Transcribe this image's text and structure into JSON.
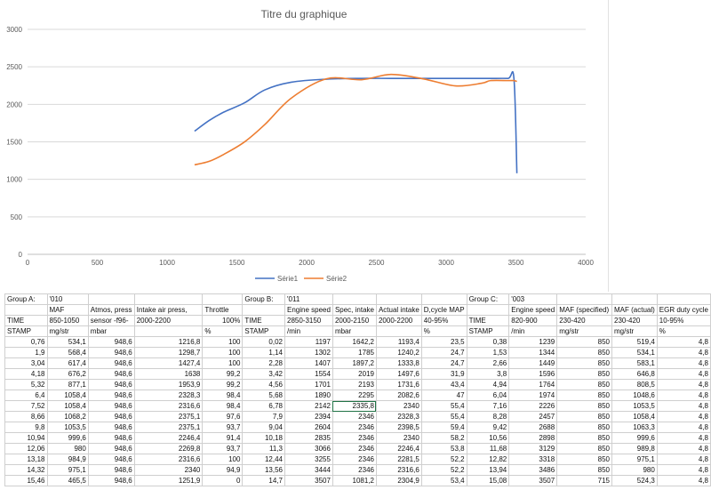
{
  "chart_data": {
    "type": "line",
    "title": "Titre du graphique",
    "xlim": [
      0,
      4000
    ],
    "ylim": [
      0,
      3000
    ],
    "x_ticks": [
      "0",
      "500",
      "1000",
      "1500",
      "2000",
      "2500",
      "3000",
      "3500",
      "4000"
    ],
    "y_ticks": [
      "0",
      "500",
      "1000",
      "1500",
      "2000",
      "2500",
      "3000"
    ],
    "grid": true,
    "legend_position": "bottom",
    "series": [
      {
        "name": "Série1",
        "color": "#4472c4",
        "x": [
          1197,
          1302,
          1407,
          1554,
          1701,
          1890,
          2142,
          2394,
          2604,
          2835,
          3066,
          3255,
          3318,
          3444,
          3486,
          3507
        ],
        "y": [
          1642.2,
          1785,
          1897.2,
          2019,
          2193,
          2295,
          2335.8,
          2346,
          2346,
          2346,
          2346,
          2346,
          2346,
          2346,
          2340,
          1081.2
        ]
      },
      {
        "name": "Série2",
        "color": "#ed7d31",
        "x": [
          1197,
          1302,
          1407,
          1554,
          1701,
          1890,
          2142,
          2394,
          2604,
          2835,
          3066,
          3255,
          3318,
          3444,
          3486,
          3507
        ],
        "y": [
          1193.4,
          1240.2,
          1333.8,
          1497.6,
          1731.6,
          2082.6,
          2340,
          2328.3,
          2398.5,
          2340,
          2246.4,
          2281.5,
          2316.6,
          2316.6,
          2316.6,
          2304.9
        ]
      }
    ]
  },
  "sheet": {
    "rows": [
      [
        "Group A:",
        "'010",
        "",
        "",
        "",
        "Group B:",
        "'011",
        "",
        "",
        "",
        "Group C:",
        "'003",
        "",
        "",
        ""
      ],
      [
        "",
        "MAF",
        "Atmos, press",
        "Intake air press,",
        "Throttle",
        "",
        "Engine speed",
        "Spec, intake",
        "Actual intake",
        "D,cycle MAP",
        "",
        "Engine speed",
        "MAF (specified)",
        "MAF (actual)",
        "EGR duty cycle"
      ],
      [
        "TIME",
        "850-1050",
        "sensor -f96-",
        "2000-2200",
        "100%",
        "TIME",
        "2850-3150",
        "2000-2150",
        "2000-2200",
        "40-95%",
        "TIME",
        "820-900",
        "230-420",
        "230-420",
        "10-95%"
      ],
      [
        "STAMP",
        "mg/str",
        "mbar",
        "",
        "%",
        "STAMP",
        "/min",
        "mbar",
        "",
        "%",
        "STAMP",
        "/min",
        "mg/str",
        "mg/str",
        "%"
      ],
      [
        "0,76",
        "534,1",
        "948,6",
        "1216,8",
        "100",
        "0,02",
        "1197",
        "1642,2",
        "1193,4",
        "23,5",
        "0,38",
        "1239",
        "850",
        "519,4",
        "4,8"
      ],
      [
        "1,9",
        "568,4",
        "948,6",
        "1298,7",
        "100",
        "1,14",
        "1302",
        "1785",
        "1240,2",
        "24,7",
        "1,53",
        "1344",
        "850",
        "534,1",
        "4,8"
      ],
      [
        "3,04",
        "617,4",
        "948,6",
        "1427,4",
        "100",
        "2,28",
        "1407",
        "1897,2",
        "1333,8",
        "24,7",
        "2,66",
        "1449",
        "850",
        "583,1",
        "4,8"
      ],
      [
        "4,18",
        "676,2",
        "948,6",
        "1638",
        "99,2",
        "3,42",
        "1554",
        "2019",
        "1497,6",
        "31,9",
        "3,8",
        "1596",
        "850",
        "646,8",
        "4,8"
      ],
      [
        "5,32",
        "877,1",
        "948,6",
        "1953,9",
        "99,2",
        "4,56",
        "1701",
        "2193",
        "1731,6",
        "43,4",
        "4,94",
        "1764",
        "850",
        "808,5",
        "4,8"
      ],
      [
        "6,4",
        "1058,4",
        "948,6",
        "2328,3",
        "98,4",
        "5,68",
        "1890",
        "2295",
        "2082,6",
        "47",
        "6,04",
        "1974",
        "850",
        "1048,6",
        "4,8"
      ],
      [
        "7,52",
        "1058,4",
        "948,6",
        "2316,6",
        "98,4",
        "6,78",
        "2142",
        "2335,8",
        "2340",
        "55,4",
        "7,16",
        "2226",
        "850",
        "1053,5",
        "4,8"
      ],
      [
        "8,66",
        "1068,2",
        "948,6",
        "2375,1",
        "97,6",
        "7,9",
        "2394",
        "2346",
        "2328,3",
        "55,4",
        "8,28",
        "2457",
        "850",
        "1058,4",
        "4,8"
      ],
      [
        "9,8",
        "1053,5",
        "948,6",
        "2375,1",
        "93,7",
        "9,04",
        "2604",
        "2346",
        "2398,5",
        "59,4",
        "9,42",
        "2688",
        "850",
        "1063,3",
        "4,8"
      ],
      [
        "10,94",
        "999,6",
        "948,6",
        "2246,4",
        "91,4",
        "10,18",
        "2835",
        "2346",
        "2340",
        "58,2",
        "10,56",
        "2898",
        "850",
        "999,6",
        "4,8"
      ],
      [
        "12,06",
        "980",
        "948,6",
        "2269,8",
        "93,7",
        "11,3",
        "3066",
        "2346",
        "2246,4",
        "53,8",
        "11,68",
        "3129",
        "850",
        "989,8",
        "4,8"
      ],
      [
        "13,18",
        "984,9",
        "948,6",
        "2316,6",
        "100",
        "12,44",
        "3255",
        "2346",
        "2281,5",
        "52,2",
        "12,82",
        "3318",
        "850",
        "975,1",
        "4,8"
      ],
      [
        "14,32",
        "975,1",
        "948,6",
        "2340",
        "94,9",
        "13,56",
        "3444",
        "2346",
        "2316,6",
        "52,2",
        "13,94",
        "3486",
        "850",
        "980",
        "4,8"
      ],
      [
        "15,46",
        "465,5",
        "948,6",
        "1251,9",
        "0",
        "14,7",
        "3507",
        "1081,2",
        "2304,9",
        "53,4",
        "15,08",
        "3507",
        "715",
        "524,3",
        "4,8"
      ]
    ]
  }
}
